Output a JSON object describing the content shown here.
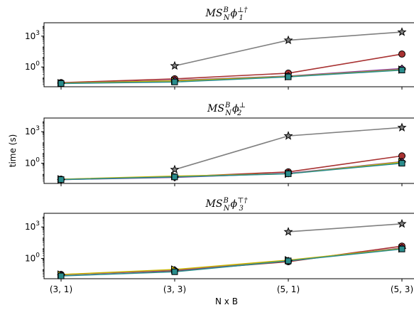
{
  "chart_data": [
    {
      "type": "line",
      "title": {
        "base": "MS",
        "sub": "N",
        "sup": "B",
        "phi": "ϕ",
        "phi_sub": "1",
        "phi_sup": "⊥†"
      },
      "categories": [
        "(3, 1)",
        "(3, 3)",
        "(5, 1)",
        "(5, 3)"
      ],
      "yscale": "log",
      "ylim": [
        0.012,
        20000
      ],
      "yticks": [
        {
          "value": 1,
          "label": "10^0"
        },
        {
          "value": 1000,
          "label": "10^3"
        }
      ],
      "series": [
        {
          "color": "#808080",
          "marker": "star",
          "values": [
            null,
            1.3,
            400,
            2500
          ]
        },
        {
          "color": "#a83232",
          "marker": "circle",
          "values": [
            0.03,
            0.07,
            0.25,
            18
          ]
        },
        {
          "color": "#8a3f9e",
          "marker": "diamond",
          "values": [
            0.027,
            0.05,
            0.13,
            0.7
          ]
        },
        {
          "color": "#c8b400",
          "marker": "triangle-right",
          "values": [
            0.027,
            0.045,
            0.12,
            0.55
          ]
        },
        {
          "color": "#2a8c8c",
          "marker": "square",
          "values": [
            0.025,
            0.035,
            0.11,
            0.5
          ]
        }
      ]
    },
    {
      "type": "line",
      "title": {
        "base": "MS",
        "sub": "N",
        "sup": "B",
        "phi": "ϕ",
        "phi_sub": "2",
        "phi_sup": "⊥"
      },
      "categories": [
        "(3, 1)",
        "(3, 3)",
        "(5, 1)",
        "(5, 3)"
      ],
      "yscale": "log",
      "ylabel": "time (s)",
      "ylim": [
        0.012,
        20000
      ],
      "yticks": [
        {
          "value": 1,
          "label": "10^0"
        },
        {
          "value": 1000,
          "label": "10^3"
        }
      ],
      "series": [
        {
          "color": "#808080",
          "marker": "star",
          "values": [
            null,
            0.25,
            400,
            2500
          ]
        },
        {
          "color": "#a83232",
          "marker": "circle",
          "values": [
            0.03,
            0.05,
            0.15,
            5
          ]
        },
        {
          "color": "#8a3f9e",
          "marker": "diamond",
          "values": [
            0.028,
            0.045,
            0.11,
            1.4
          ]
        },
        {
          "color": "#c8b400",
          "marker": "triangle-right",
          "values": [
            0.03,
            0.06,
            0.1,
            1.3
          ]
        },
        {
          "color": "#2a8c8c",
          "marker": "square",
          "values": [
            0.028,
            0.05,
            0.1,
            1.0
          ]
        }
      ]
    },
    {
      "type": "line",
      "title": {
        "base": "MS",
        "sub": "N",
        "sup": "B",
        "phi": "ϕ",
        "phi_sub": "3",
        "phi_sup": "⊤†"
      },
      "categories": [
        "(3, 1)",
        "(3, 3)",
        "(5, 1)",
        "(5, 3)"
      ],
      "yscale": "log",
      "xlabel": "N x B",
      "ylim": [
        0.012,
        20000
      ],
      "yticks": [
        {
          "value": 1,
          "label": "10^0"
        },
        {
          "value": 1000,
          "label": "10^3"
        }
      ],
      "series": [
        {
          "color": "#808080",
          "marker": "star",
          "values": [
            null,
            null,
            350,
            2000
          ]
        },
        {
          "color": "#a83232",
          "marker": "circle",
          "values": [
            0.03,
            0.07,
            0.5,
            15
          ]
        },
        {
          "color": "#8a3f9e",
          "marker": "diamond",
          "values": [
            0.028,
            0.08,
            0.6,
            10
          ]
        },
        {
          "color": "#c8b400",
          "marker": "triangle-right",
          "values": [
            0.03,
            0.09,
            0.7,
            9
          ]
        },
        {
          "color": "#2a8c8c",
          "marker": "square",
          "values": [
            0.022,
            0.055,
            0.6,
            8
          ]
        }
      ]
    }
  ]
}
